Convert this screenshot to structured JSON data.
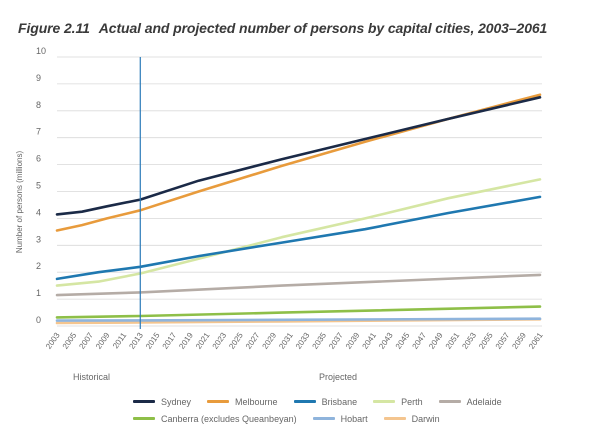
{
  "figure": {
    "number": "Figure 2.11",
    "title": "Actual and projected number of persons by capital cities, 2003–2061"
  },
  "chart_data": {
    "type": "line",
    "title": "Actual and projected number of persons by capital cities, 2003–2061",
    "ylabel": "Number of persons (millions)",
    "xlabel": "",
    "ylim": [
      0,
      10
    ],
    "xlim": [
      2003,
      2061
    ],
    "yticks": [
      0,
      1,
      2,
      3,
      4,
      5,
      6,
      7,
      8,
      9,
      10
    ],
    "xticks": [
      "2003",
      "2005",
      "2007",
      "2009",
      "2011",
      "2013",
      "2015",
      "2017",
      "2019",
      "2021",
      "2023",
      "2025",
      "2027",
      "2029",
      "2031",
      "2033",
      "2035",
      "2037",
      "2039",
      "2041",
      "2043",
      "2045",
      "2047",
      "2049",
      "2051",
      "2053",
      "2055",
      "2057",
      "2059",
      "2061"
    ],
    "grid": "horizontal",
    "divider_year": 2013,
    "period_labels": [
      "Historical",
      "Projected"
    ],
    "legend_position": "bottom",
    "series": [
      {
        "name": "Sydney",
        "color": "#1b2a47",
        "x": [
          2003,
          2006,
          2009,
          2013,
          2020,
          2030,
          2040,
          2050,
          2061
        ],
        "values": [
          4.15,
          4.25,
          4.45,
          4.7,
          5.4,
          6.2,
          6.95,
          7.7,
          8.5
        ]
      },
      {
        "name": "Melbourne",
        "color": "#e89b3c",
        "x": [
          2003,
          2006,
          2009,
          2013,
          2020,
          2030,
          2040,
          2050,
          2061
        ],
        "values": [
          3.55,
          3.75,
          4.0,
          4.3,
          5.0,
          5.95,
          6.85,
          7.7,
          8.6
        ]
      },
      {
        "name": "Brisbane",
        "color": "#1f78b0",
        "x": [
          2003,
          2008,
          2013,
          2020,
          2030,
          2040,
          2050,
          2061
        ],
        "values": [
          1.75,
          2.0,
          2.2,
          2.6,
          3.1,
          3.6,
          4.2,
          4.8
        ]
      },
      {
        "name": "Perth",
        "color": "#d5e6a3",
        "x": [
          2003,
          2008,
          2013,
          2020,
          2030,
          2040,
          2050,
          2061
        ],
        "values": [
          1.5,
          1.65,
          1.95,
          2.5,
          3.3,
          4.0,
          4.75,
          5.45
        ]
      },
      {
        "name": "Adelaide",
        "color": "#b5aca6",
        "x": [
          2003,
          2013,
          2030,
          2061
        ],
        "values": [
          1.15,
          1.25,
          1.5,
          1.9
        ]
      },
      {
        "name": "Canberra (excludes Queanbeyan)",
        "color": "#8ebf48",
        "x": [
          2003,
          2013,
          2030,
          2061
        ],
        "values": [
          0.32,
          0.37,
          0.5,
          0.72
        ]
      },
      {
        "name": "Hobart",
        "color": "#8fb4dc",
        "x": [
          2003,
          2013,
          2030,
          2061
        ],
        "values": [
          0.2,
          0.21,
          0.23,
          0.27
        ]
      },
      {
        "name": "Darwin",
        "color": "#f4c58f",
        "x": [
          2003,
          2013,
          2030,
          2061
        ],
        "values": [
          0.11,
          0.13,
          0.17,
          0.25
        ]
      }
    ]
  },
  "legend": {
    "rows": [
      [
        "Sydney",
        "Melbourne",
        "Brisbane",
        "Perth",
        "Adelaide"
      ],
      [
        "Canberra (excludes Queanbeyan)",
        "Hobart",
        "Darwin"
      ]
    ]
  }
}
